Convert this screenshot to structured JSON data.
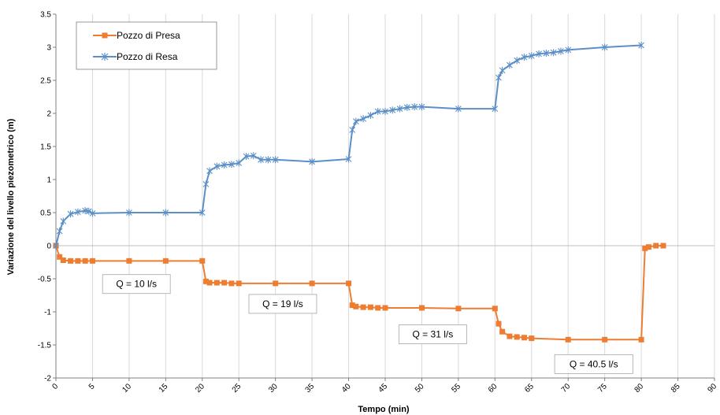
{
  "chart_data": {
    "type": "line",
    "xlabel": "Tempo (min)",
    "ylabel": "Variazione del livello piezometrico (m)",
    "xlim": [
      0,
      90
    ],
    "ylim": [
      -2,
      3.5
    ],
    "xticks": [
      0,
      5,
      10,
      15,
      20,
      25,
      30,
      35,
      40,
      45,
      50,
      55,
      60,
      65,
      70,
      75,
      80,
      85,
      90
    ],
    "yticks": [
      -2,
      -1.5,
      -1,
      -0.5,
      0,
      0.5,
      1,
      1.5,
      2,
      2.5,
      3,
      3.5
    ],
    "grid": "vertical",
    "legend_position": "top-left",
    "series": [
      {
        "name": "Pozzo di Presa",
        "color": "#ed7d31",
        "marker": "square",
        "x": [
          0,
          0.5,
          1,
          2,
          3,
          4,
          5,
          10,
          15,
          20,
          20.5,
          21,
          22,
          23,
          24,
          25,
          30,
          35,
          40,
          40.5,
          41,
          42,
          43,
          44,
          45,
          50,
          55,
          60,
          60.5,
          61,
          62,
          63,
          64,
          65,
          70,
          75,
          80,
          80.5,
          81,
          82,
          83
        ],
        "values": [
          0,
          -0.17,
          -0.22,
          -0.23,
          -0.23,
          -0.23,
          -0.23,
          -0.23,
          -0.23,
          -0.23,
          -0.54,
          -0.56,
          -0.56,
          -0.56,
          -0.57,
          -0.57,
          -0.57,
          -0.57,
          -0.57,
          -0.9,
          -0.92,
          -0.93,
          -0.93,
          -0.94,
          -0.94,
          -0.94,
          -0.95,
          -0.95,
          -1.18,
          -1.3,
          -1.37,
          -1.38,
          -1.39,
          -1.4,
          -1.42,
          -1.42,
          -1.42,
          -0.04,
          -0.02,
          0,
          0
        ]
      },
      {
        "name": "Pozzo di Resa",
        "color": "#5b8fc7",
        "marker": "star",
        "x": [
          0,
          0.5,
          1,
          2,
          3,
          4,
          4.5,
          5,
          10,
          15,
          20,
          20.5,
          21,
          22,
          23,
          24,
          25,
          26,
          27,
          28,
          29,
          30,
          35,
          40,
          40.5,
          41,
          42,
          43,
          44,
          45,
          46,
          47,
          48,
          49,
          50,
          55,
          60,
          60.5,
          61,
          62,
          63,
          64,
          65,
          66,
          67,
          68,
          69,
          70,
          75,
          80
        ],
        "values": [
          0,
          0.22,
          0.37,
          0.48,
          0.51,
          0.53,
          0.52,
          0.49,
          0.5,
          0.5,
          0.5,
          0.93,
          1.13,
          1.2,
          1.22,
          1.23,
          1.25,
          1.35,
          1.36,
          1.3,
          1.3,
          1.3,
          1.27,
          1.31,
          1.75,
          1.88,
          1.92,
          1.97,
          2.03,
          2.03,
          2.05,
          2.07,
          2.09,
          2.1,
          2.1,
          2.07,
          2.07,
          2.54,
          2.65,
          2.73,
          2.8,
          2.85,
          2.87,
          2.9,
          2.91,
          2.92,
          2.94,
          2.96,
          3.0,
          3.03
        ]
      }
    ],
    "annotations": [
      {
        "text": "Q = 10 l/s",
        "x": 11,
        "y": -0.58
      },
      {
        "text": "Q = 19 l/s",
        "x": 31,
        "y": -0.88
      },
      {
        "text": "Q = 31 l/s",
        "x": 51.5,
        "y": -1.34
      },
      {
        "text": "Q = 40.5 l/s",
        "x": 73.5,
        "y": -1.79
      }
    ]
  }
}
